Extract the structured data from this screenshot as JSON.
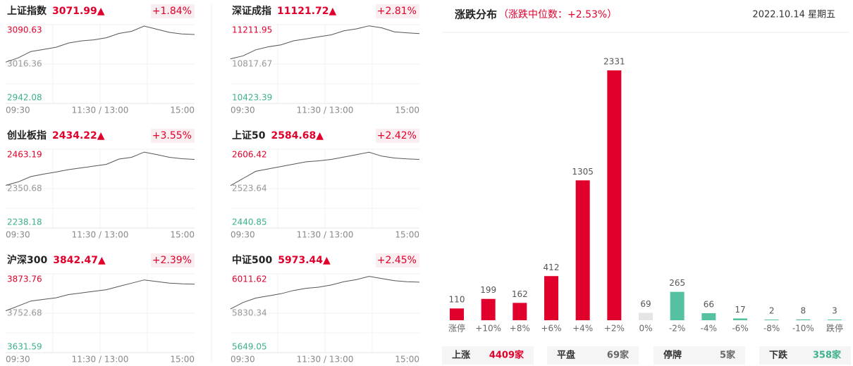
{
  "chart_data": [
    {
      "type": "line",
      "title": "上证指数",
      "price": "3071.99▲",
      "change": "+1.84%",
      "color": "#555555",
      "ylim": [
        2942.08,
        3090.63
      ],
      "yticks": [
        3090.63,
        3016.36,
        2942.08
      ],
      "tick_colors": [
        "#e0002b",
        "#999999",
        "#3cb08d"
      ],
      "xticks": [
        "09:30",
        "11:30 / 13:00",
        "15:00"
      ],
      "values": [
        3020,
        3028,
        3040,
        3044,
        3048,
        3056,
        3060,
        3062,
        3066,
        3074,
        3078,
        3088,
        3082,
        3076,
        3073,
        3072
      ]
    },
    {
      "type": "line",
      "title": "深证成指",
      "price": "11121.72▲",
      "change": "+2.81%",
      "color": "#555555",
      "ylim": [
        10423.39,
        11211.95
      ],
      "yticks": [
        11211.95,
        10817.67,
        10423.39
      ],
      "tick_colors": [
        "#e0002b",
        "#999999",
        "#3cb08d"
      ],
      "xticks": [
        "09:30",
        "11:30 / 13:00",
        "15:00"
      ],
      "values": [
        10870,
        10900,
        10960,
        10990,
        11010,
        11050,
        11070,
        11090,
        11110,
        11150,
        11170,
        11200,
        11180,
        11140,
        11130,
        11122
      ]
    },
    {
      "type": "line",
      "title": "创业板指",
      "price": "2434.22▲",
      "change": "+3.55%",
      "color": "#555555",
      "ylim": [
        2238.18,
        2463.19
      ],
      "yticks": [
        2463.19,
        2350.68,
        2238.18
      ],
      "tick_colors": [
        "#e0002b",
        "#999999",
        "#3cb08d"
      ],
      "xticks": [
        "09:30",
        "11:30 / 13:00",
        "15:00"
      ],
      "values": [
        2360,
        2370,
        2385,
        2392,
        2398,
        2405,
        2410,
        2415,
        2420,
        2435,
        2440,
        2455,
        2448,
        2440,
        2436,
        2434
      ]
    },
    {
      "type": "line",
      "title": "上证50",
      "price": "2584.68▲",
      "change": "+2.42%",
      "color": "#555555",
      "ylim": [
        2440.85,
        2606.42
      ],
      "yticks": [
        2606.42,
        2523.64,
        2440.85
      ],
      "tick_colors": [
        "#e0002b",
        "#999999",
        "#3cb08d"
      ],
      "xticks": [
        "09:30",
        "11:30 / 13:00",
        "15:00"
      ],
      "values": [
        2530,
        2545,
        2560,
        2565,
        2570,
        2575,
        2580,
        2582,
        2585,
        2590,
        2595,
        2600,
        2592,
        2588,
        2586,
        2585
      ]
    },
    {
      "type": "line",
      "title": "沪深300",
      "price": "3842.47▲",
      "change": "+2.39%",
      "color": "#555555",
      "ylim": [
        3631.59,
        3873.76
      ],
      "yticks": [
        3873.76,
        3752.68,
        3631.59
      ],
      "tick_colors": [
        "#e0002b",
        "#999999",
        "#3cb08d"
      ],
      "xticks": [
        "09:30",
        "11:30 / 13:00",
        "15:00"
      ],
      "values": [
        3760,
        3775,
        3790,
        3795,
        3800,
        3810,
        3815,
        3820,
        3825,
        3835,
        3845,
        3855,
        3850,
        3845,
        3843,
        3842
      ]
    },
    {
      "type": "line",
      "title": "中证500",
      "price": "5973.44▲",
      "change": "+2.45%",
      "color": "#555555",
      "ylim": [
        5649.05,
        6011.62
      ],
      "yticks": [
        6011.62,
        5830.34,
        5649.05
      ],
      "tick_colors": [
        "#e0002b",
        "#999999",
        "#3cb08d"
      ],
      "xticks": [
        "09:30",
        "11:30 / 13:00",
        "15:00"
      ],
      "values": [
        5850,
        5880,
        5900,
        5910,
        5920,
        5935,
        5945,
        5950,
        5960,
        5975,
        5985,
        6000,
        5990,
        5980,
        5975,
        5973
      ]
    },
    {
      "type": "bar",
      "title": "涨跌分布",
      "subtitle": "（涨跌中位数：+2.53%）",
      "date": "2022.10.14 星期五",
      "categories": [
        "涨停",
        "+10%",
        "+8%",
        "+6%",
        "+4%",
        "+2%",
        "0%",
        "-2%",
        "-4%",
        "-6%",
        "-8%",
        "-10%",
        "跌停"
      ],
      "values": [
        110,
        199,
        162,
        412,
        1305,
        2331,
        69,
        265,
        66,
        17,
        2,
        8,
        3
      ],
      "colors": [
        "#e0002b",
        "#e0002b",
        "#e0002b",
        "#e0002b",
        "#e0002b",
        "#e0002b",
        "#e5e5e5",
        "#55c1a0",
        "#55c1a0",
        "#55c1a0",
        "#55c1a0",
        "#55c1a0",
        "#55c1a0"
      ]
    }
  ],
  "summary": [
    {
      "label": "上涨",
      "count": "4409家",
      "color": "#e0002b"
    },
    {
      "label": "平盘",
      "count": "69家",
      "color": "#666666"
    },
    {
      "label": "停牌",
      "count": "5家",
      "color": "#666666"
    },
    {
      "label": "下跌",
      "count": "358家",
      "color": "#3cb08d"
    }
  ]
}
